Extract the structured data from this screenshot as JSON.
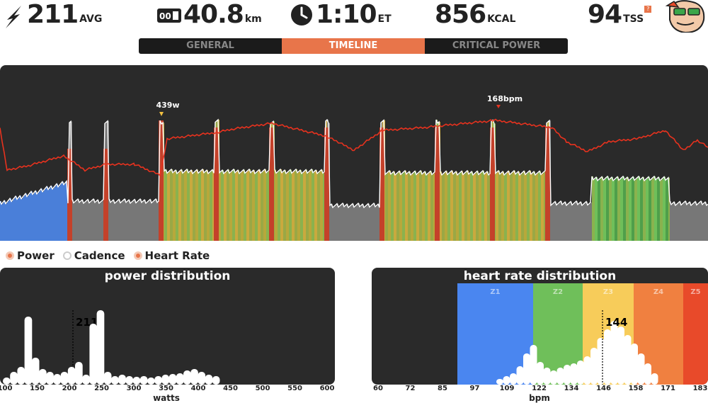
{
  "stats": {
    "power": {
      "value": "211",
      "unit": "AVG"
    },
    "distance": {
      "value": "40.8",
      "unit": "km"
    },
    "time": {
      "value": "1:10",
      "unit": "ET"
    },
    "calories": {
      "value": "856",
      "unit": "KCAL"
    },
    "tss": {
      "value": "94",
      "unit": "TSS"
    }
  },
  "tabs": [
    {
      "label": "GENERAL",
      "active": false
    },
    {
      "label": "TIMELINE",
      "active": true
    },
    {
      "label": "CRITICAL POWER",
      "active": false
    }
  ],
  "timeline": {
    "peak_power_label": "439w",
    "peak_hr_label": "168bpm",
    "colors": {
      "background": "#2a2a2a",
      "hr_line": "#e8321e",
      "power_line": "#ffffff",
      "z1": "#4a7fd9",
      "z2": "#6fbf5a",
      "z3": "#e6b83b",
      "z6": "#c4412a",
      "base": "#777777"
    }
  },
  "legend": [
    {
      "label": "Power",
      "color": "#e8754a"
    },
    {
      "label": "Cadence",
      "color": "#ffffff"
    },
    {
      "label": "Heart Rate",
      "color": "#e8754a"
    }
  ],
  "power_distribution": {
    "title": "power distribution",
    "avg_label": "211",
    "x_title": "watts",
    "ticks": [
      "100",
      "150",
      "200",
      "250",
      "300",
      "350",
      "400",
      "450",
      "500",
      "550",
      "600"
    ]
  },
  "hr_distribution": {
    "title": "heart rate distribution",
    "avg_label": "144",
    "x_title": "bpm",
    "ticks": [
      "60",
      "72",
      "85",
      "97",
      "109",
      "122",
      "134",
      "146",
      "158",
      "171",
      "183"
    ],
    "zones": [
      {
        "label": "Z1",
        "color": "#4a86f0"
      },
      {
        "label": "Z2",
        "color": "#6fbf5a"
      },
      {
        "label": "Z3",
        "color": "#f7cc5a"
      },
      {
        "label": "Z4",
        "color": "#f08040"
      },
      {
        "label": "Z5",
        "color": "#e84a2a"
      }
    ]
  }
}
